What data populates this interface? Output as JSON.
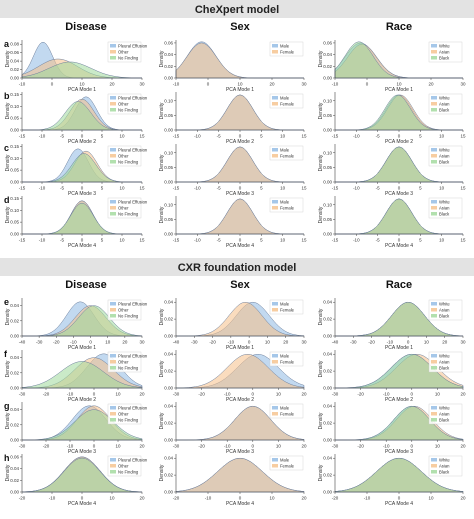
{
  "banners": [
    "CheXpert model",
    "CXR foundation model"
  ],
  "columns": [
    "Disease",
    "Sex",
    "Race"
  ],
  "row_letters": [
    "a",
    "b",
    "c",
    "d",
    "e",
    "f",
    "g",
    "h"
  ],
  "ylabel": "Density",
  "legends": {
    "disease": [
      "Pleural Effusion",
      "Other",
      "No Finding"
    ],
    "sex": [
      "Male",
      "Female"
    ],
    "race": [
      "White",
      "Asian",
      "Black"
    ]
  },
  "colors": [
    "#8fb9e3",
    "#f5c089",
    "#9fd89a"
  ],
  "outline": "#6d7f9c",
  "chart_data": {
    "type": "area",
    "models": [
      {
        "name": "CheXpert model",
        "modes": [
          {
            "xlabel": "PCA Mode 1",
            "xticks": [
              -10,
              0,
              10,
              20,
              30
            ],
            "disease": {
              "yticks": [
                0.0,
                0.02,
                0.04,
                0.06,
                0.08
              ],
              "ymax": 0.09,
              "series": [
                {
                  "name": "Pleural Effusion",
                  "mu": -3,
                  "sd": 3.2,
                  "peak": 0.085
                },
                {
                  "name": "Other",
                  "mu": 2,
                  "sd": 6.5,
                  "peak": 0.045
                },
                {
                  "name": "No Finding",
                  "mu": 6,
                  "sd": 7,
                  "peak": 0.038
                }
              ]
            },
            "sex": {
              "yticks": [
                0.0,
                0.02,
                0.04,
                0.06
              ],
              "ymax": 0.065,
              "series": [
                {
                  "name": "Male",
                  "mu": -2,
                  "sd": 4.5,
                  "peak": 0.062
                },
                {
                  "name": "Female",
                  "mu": -2,
                  "sd": 4.6,
                  "peak": 0.06
                }
              ]
            },
            "race": {
              "yticks": [
                0.0,
                0.02,
                0.04,
                0.06
              ],
              "ymax": 0.065,
              "series": [
                {
                  "name": "White",
                  "mu": -2,
                  "sd": 4.8,
                  "peak": 0.06
                },
                {
                  "name": "Asian",
                  "mu": -1.5,
                  "sd": 4.6,
                  "peak": 0.058
                },
                {
                  "name": "Black",
                  "mu": -2.5,
                  "sd": 4.4,
                  "peak": 0.062
                }
              ]
            }
          },
          {
            "xlabel": "PCA Mode 2",
            "xticks": [
              -15,
              -10,
              -5,
              0,
              5,
              10,
              15
            ],
            "disease": {
              "yticks": [
                0.0,
                0.05,
                0.1,
                0.15
              ],
              "ymax": 0.16,
              "series": [
                {
                  "name": "Pleural Effusion",
                  "mu": 1,
                  "sd": 2.7,
                  "peak": 0.14
                },
                {
                  "name": "Other",
                  "mu": 0,
                  "sd": 3,
                  "peak": 0.13
                },
                {
                  "name": "No Finding",
                  "mu": -1,
                  "sd": 3.2,
                  "peak": 0.12
                }
              ]
            },
            "sex": {
              "yticks": [
                0.0,
                0.05,
                0.1
              ],
              "ymax": 0.13,
              "series": [
                {
                  "name": "Male",
                  "mu": 0,
                  "sd": 3,
                  "peak": 0.12
                },
                {
                  "name": "Female",
                  "mu": 0,
                  "sd": 3,
                  "peak": 0.12
                }
              ]
            },
            "race": {
              "yticks": [
                0.0,
                0.05,
                0.1
              ],
              "ymax": 0.13,
              "series": [
                {
                  "name": "White",
                  "mu": 0,
                  "sd": 3,
                  "peak": 0.12
                },
                {
                  "name": "Asian",
                  "mu": 0.3,
                  "sd": 3,
                  "peak": 0.12
                },
                {
                  "name": "Black",
                  "mu": -0.3,
                  "sd": 3,
                  "peak": 0.12
                }
              ]
            }
          },
          {
            "xlabel": "PCA Mode 3",
            "xticks": [
              -15,
              -10,
              -5,
              0,
              5,
              10,
              15
            ],
            "disease": {
              "yticks": [
                0.0,
                0.05,
                0.1,
                0.15
              ],
              "ymax": 0.16,
              "series": [
                {
                  "name": "Pleural Effusion",
                  "mu": -1,
                  "sd": 2.6,
                  "peak": 0.14
                },
                {
                  "name": "Other",
                  "mu": 1,
                  "sd": 2.8,
                  "peak": 0.13
                },
                {
                  "name": "No Finding",
                  "mu": 0.5,
                  "sd": 3,
                  "peak": 0.12
                }
              ]
            },
            "sex": {
              "yticks": [
                0.0,
                0.05,
                0.1
              ],
              "ymax": 0.13,
              "series": [
                {
                  "name": "Male",
                  "mu": 0,
                  "sd": 3,
                  "peak": 0.12
                },
                {
                  "name": "Female",
                  "mu": 0,
                  "sd": 3,
                  "peak": 0.12
                }
              ]
            },
            "race": {
              "yticks": [
                0.0,
                0.05,
                0.1
              ],
              "ymax": 0.13,
              "series": [
                {
                  "name": "White",
                  "mu": 0,
                  "sd": 3,
                  "peak": 0.12
                },
                {
                  "name": "Asian",
                  "mu": 0,
                  "sd": 3,
                  "peak": 0.12
                },
                {
                  "name": "Black",
                  "mu": 0,
                  "sd": 3,
                  "peak": 0.12
                }
              ]
            }
          },
          {
            "xlabel": "PCA Mode 4",
            "xticks": [
              -15,
              -10,
              -5,
              0,
              5,
              10,
              15
            ],
            "disease": {
              "yticks": [
                0.0,
                0.05,
                0.1,
                0.15
              ],
              "ymax": 0.16,
              "series": [
                {
                  "name": "Pleural Effusion",
                  "mu": 0,
                  "sd": 2.7,
                  "peak": 0.14
                },
                {
                  "name": "Other",
                  "mu": 0,
                  "sd": 2.7,
                  "peak": 0.14
                },
                {
                  "name": "No Finding",
                  "mu": 0,
                  "sd": 2.8,
                  "peak": 0.13
                }
              ]
            },
            "sex": {
              "yticks": [
                0.0,
                0.05,
                0.1
              ],
              "ymax": 0.13,
              "series": [
                {
                  "name": "Male",
                  "mu": 0,
                  "sd": 3,
                  "peak": 0.12
                },
                {
                  "name": "Female",
                  "mu": 0,
                  "sd": 3,
                  "peak": 0.12
                }
              ]
            },
            "race": {
              "yticks": [
                0.0,
                0.05,
                0.1
              ],
              "ymax": 0.13,
              "series": [
                {
                  "name": "White",
                  "mu": 0,
                  "sd": 3,
                  "peak": 0.12
                },
                {
                  "name": "Asian",
                  "mu": 0,
                  "sd": 3,
                  "peak": 0.12
                },
                {
                  "name": "Black",
                  "mu": 0,
                  "sd": 3,
                  "peak": 0.12
                }
              ]
            }
          }
        ]
      },
      {
        "name": "CXR foundation model",
        "modes": [
          {
            "xlabel": "PCA Mode 1",
            "xticks": [
              -40,
              -30,
              -20,
              -10,
              0,
              10,
              20,
              30
            ],
            "disease": {
              "yticks": [
                0.0,
                0.02,
                0.04
              ],
              "ymax": 0.05,
              "series": [
                {
                  "name": "Pleural Effusion",
                  "mu": -6,
                  "sd": 8,
                  "peak": 0.045
                },
                {
                  "name": "Other",
                  "mu": 0,
                  "sd": 9,
                  "peak": 0.04
                },
                {
                  "name": "No Finding",
                  "mu": 2,
                  "sd": 9,
                  "peak": 0.04
                }
              ]
            },
            "sex": {
              "yticks": [
                0.0,
                0.02,
                0.04
              ],
              "ymax": 0.045,
              "series": [
                {
                  "name": "Male",
                  "mu": 2,
                  "sd": 9,
                  "peak": 0.04
                },
                {
                  "name": "Female",
                  "mu": -2,
                  "sd": 9,
                  "peak": 0.04
                }
              ]
            },
            "race": {
              "yticks": [
                0.0,
                0.02,
                0.04
              ],
              "ymax": 0.045,
              "series": [
                {
                  "name": "White",
                  "mu": 0,
                  "sd": 9,
                  "peak": 0.04
                },
                {
                  "name": "Asian",
                  "mu": 0,
                  "sd": 9,
                  "peak": 0.04
                },
                {
                  "name": "Black",
                  "mu": 0,
                  "sd": 9,
                  "peak": 0.04
                }
              ]
            }
          },
          {
            "xlabel": "PCA Mode 2",
            "xticks": [
              -30,
              -20,
              -10,
              0,
              10,
              20
            ],
            "disease": {
              "yticks": [
                0.0,
                0.02,
                0.04
              ],
              "ymax": 0.05,
              "series": [
                {
                  "name": "Pleural Effusion",
                  "mu": 4,
                  "sd": 7,
                  "peak": 0.045
                },
                {
                  "name": "Other",
                  "mu": 0,
                  "sd": 8,
                  "peak": 0.04
                },
                {
                  "name": "No Finding",
                  "mu": -5,
                  "sd": 9,
                  "peak": 0.035
                }
              ]
            },
            "sex": {
              "yticks": [
                0.0,
                0.02,
                0.04
              ],
              "ymax": 0.045,
              "series": [
                {
                  "name": "Male",
                  "mu": 2,
                  "sd": 8,
                  "peak": 0.04
                },
                {
                  "name": "Female",
                  "mu": -2,
                  "sd": 8,
                  "peak": 0.04
                }
              ]
            },
            "race": {
              "yticks": [
                0.0,
                0.02,
                0.04
              ],
              "ymax": 0.045,
              "series": [
                {
                  "name": "White",
                  "mu": 0,
                  "sd": 8,
                  "peak": 0.04
                },
                {
                  "name": "Asian",
                  "mu": 2,
                  "sd": 8,
                  "peak": 0.04
                },
                {
                  "name": "Black",
                  "mu": 0,
                  "sd": 8,
                  "peak": 0.04
                }
              ]
            }
          },
          {
            "xlabel": "PCA Mode 3",
            "xticks": [
              -30,
              -20,
              -10,
              0,
              10,
              20
            ],
            "disease": {
              "yticks": [
                0.0,
                0.02,
                0.04
              ],
              "ymax": 0.05,
              "series": [
                {
                  "name": "Pleural Effusion",
                  "mu": -2,
                  "sd": 7,
                  "peak": 0.045
                },
                {
                  "name": "Other",
                  "mu": 0,
                  "sd": 7,
                  "peak": 0.045
                },
                {
                  "name": "No Finding",
                  "mu": 0,
                  "sd": 8,
                  "peak": 0.04
                }
              ]
            },
            "sex": {
              "yticks": [
                0.0,
                0.02,
                0.04
              ],
              "ymax": 0.045,
              "series": [
                {
                  "name": "Male",
                  "mu": 0,
                  "sd": 7,
                  "peak": 0.04
                },
                {
                  "name": "Female",
                  "mu": 0,
                  "sd": 7,
                  "peak": 0.04
                }
              ]
            },
            "race": {
              "yticks": [
                0.0,
                0.02,
                0.04
              ],
              "ymax": 0.045,
              "series": [
                {
                  "name": "White",
                  "mu": 0,
                  "sd": 7,
                  "peak": 0.04
                },
                {
                  "name": "Asian",
                  "mu": 1,
                  "sd": 7,
                  "peak": 0.04
                },
                {
                  "name": "Black",
                  "mu": 0,
                  "sd": 7,
                  "peak": 0.04
                }
              ]
            }
          },
          {
            "xlabel": "PCA Mode 4",
            "xticks": [
              -20,
              -10,
              0,
              10,
              20
            ],
            "disease": {
              "yticks": [
                0.0,
                0.02,
                0.04,
                0.06
              ],
              "ymax": 0.065,
              "series": [
                {
                  "name": "Pleural Effusion",
                  "mu": 0,
                  "sd": 6,
                  "peak": 0.06
                },
                {
                  "name": "Other",
                  "mu": 0,
                  "sd": 6,
                  "peak": 0.06
                },
                {
                  "name": "No Finding",
                  "mu": 0,
                  "sd": 6,
                  "peak": 0.058
                }
              ]
            },
            "sex": {
              "yticks": [
                0.0,
                0.02,
                0.04
              ],
              "ymax": 0.045,
              "series": [
                {
                  "name": "Male",
                  "mu": 0,
                  "sd": 7,
                  "peak": 0.04
                },
                {
                  "name": "Female",
                  "mu": 0,
                  "sd": 7,
                  "peak": 0.04
                }
              ]
            },
            "race": {
              "yticks": [
                0.0,
                0.02,
                0.04
              ],
              "ymax": 0.045,
              "series": [
                {
                  "name": "White",
                  "mu": 0,
                  "sd": 7,
                  "peak": 0.04
                },
                {
                  "name": "Asian",
                  "mu": 0,
                  "sd": 7,
                  "peak": 0.04
                },
                {
                  "name": "Black",
                  "mu": 0,
                  "sd": 7,
                  "peak": 0.04
                }
              ]
            }
          }
        ]
      }
    ]
  }
}
